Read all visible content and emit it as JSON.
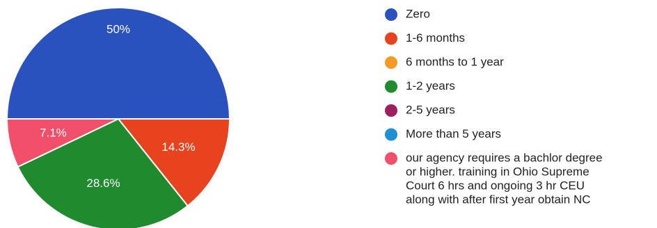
{
  "chart_data": {
    "type": "pie",
    "slices": [
      {
        "label": "Zero",
        "value": 50,
        "display": "50%",
        "color": "#2a52be"
      },
      {
        "label": "1-6 months",
        "value": 14.3,
        "display": "14.3%",
        "color": "#e8431f"
      },
      {
        "label": "6 months to 1 year",
        "value": 0,
        "display": "",
        "color": "#f59a26"
      },
      {
        "label": "1-2 years",
        "value": 28.6,
        "display": "28.6%",
        "color": "#1f8a2e"
      },
      {
        "label": "2-5 years",
        "value": 0,
        "display": "",
        "color": "#9c1f5e"
      },
      {
        "label": "More than 5 years",
        "value": 0,
        "display": "",
        "color": "#1f8fd6"
      },
      {
        "label": "our agency requires a bachlor degree or higher. training in Ohio Supreme Court 6 hrs and ongoing 3 hr CEU along with after first year obtain NC",
        "value": 7.1,
        "display": "7.1%",
        "color": "#f2506a"
      }
    ],
    "legend": {
      "placement": "right",
      "entries": [
        {
          "lines": [
            "Zero"
          ],
          "color": "#2a52be"
        },
        {
          "lines": [
            "1-6 months"
          ],
          "color": "#e8431f"
        },
        {
          "lines": [
            "6 months to 1 year"
          ],
          "color": "#f59a26"
        },
        {
          "lines": [
            "1-2 years"
          ],
          "color": "#1f8a2e"
        },
        {
          "lines": [
            "2-5 years"
          ],
          "color": "#9c1f5e"
        },
        {
          "lines": [
            "More than 5 years"
          ],
          "color": "#1f8fd6"
        },
        {
          "lines": [
            "our agency requires a bachlor degree",
            "or higher. training in Ohio Supreme",
            "Court 6 hrs and ongoing 3 hr CEU",
            "along with after first year obtain NC"
          ],
          "color": "#f2506a"
        }
      ]
    }
  }
}
